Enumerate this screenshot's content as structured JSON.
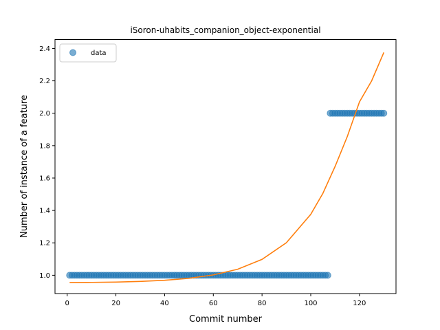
{
  "chart_data": {
    "type": "scatter",
    "title": "iSoron-uhabits_companion_object-exponential",
    "xlabel": "Commit number",
    "ylabel": "Number of instance of a feature",
    "xlim": [
      -5,
      135
    ],
    "ylim": [
      0.887,
      2.455
    ],
    "xticks": [
      0,
      20,
      40,
      60,
      80,
      100,
      120
    ],
    "yticks": [
      1.0,
      1.2,
      1.4,
      1.6,
      1.8,
      2.0,
      2.2,
      2.4
    ],
    "xtick_labels": [
      "0",
      "20",
      "40",
      "60",
      "80",
      "100",
      "120"
    ],
    "ytick_labels": [
      "1.0",
      "1.2",
      "1.4",
      "1.6",
      "1.8",
      "2.0",
      "2.2",
      "2.4"
    ],
    "grid": false,
    "legend": {
      "placement": "top-left",
      "entries": [
        "data"
      ]
    },
    "colors": {
      "data": "#1f77b4",
      "fit": "#ff7f0e"
    },
    "series": [
      {
        "name": "data",
        "kind": "scatter",
        "segments": [
          {
            "x_start": 1,
            "x_end": 107,
            "y": 1.0
          },
          {
            "x_start": 108,
            "x_end": 130,
            "y": 2.0
          }
        ]
      },
      {
        "kind": "line",
        "fit": "exponential",
        "x": [
          1,
          10,
          20,
          30,
          40,
          50,
          60,
          70,
          80,
          90,
          100,
          105,
          110,
          115,
          120,
          125,
          130
        ],
        "y": [
          0.955,
          0.956,
          0.958,
          0.962,
          0.969,
          0.981,
          1.002,
          1.037,
          1.098,
          1.201,
          1.376,
          1.506,
          1.672,
          1.856,
          2.07,
          2.2,
          2.375
        ]
      }
    ]
  }
}
